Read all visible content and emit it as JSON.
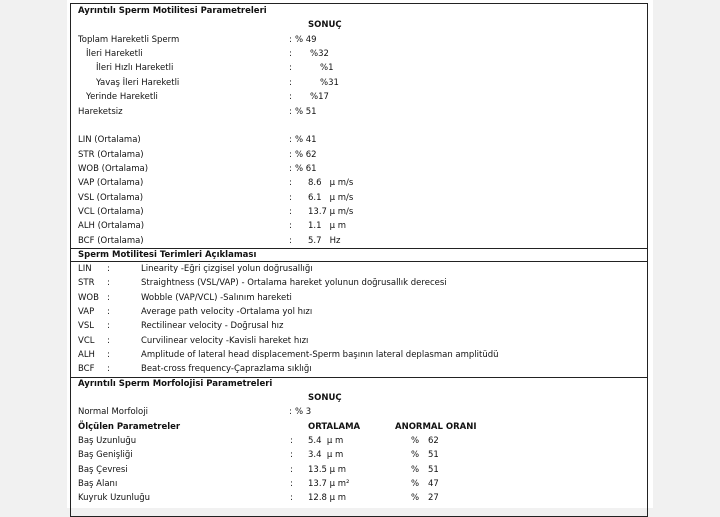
{
  "motility": {
    "title": "Ayrıntılı Sperm Motilitesi Parametreleri",
    "header": "SONUÇ",
    "rows": [
      [
        "Toplam Hareketli Sperm",
        ":",
        "% 49"
      ],
      [
        "İleri Hareketli",
        ":",
        "%32"
      ],
      [
        "İleri Hızlı Hareketli",
        ":",
        "%1"
      ],
      [
        "Yavaş İleri Hareketli",
        ":",
        "%31"
      ],
      [
        "Yerinde Hareketli",
        ":",
        "%17"
      ],
      [
        "Hareketsiz",
        ":",
        "% 51"
      ],
      [
        "LIN (Ortalama)",
        ":",
        "% 41"
      ],
      [
        "STR (Ortalama)",
        ":",
        "% 62"
      ],
      [
        "WOB (Ortalama)",
        ":",
        "% 61"
      ],
      [
        "VAP (Ortalama)",
        ":",
        "8.6   µ m/s"
      ],
      [
        "VSL (Ortalama)",
        ":",
        "6.1   µ m/s"
      ],
      [
        "VCL (Ortalama)",
        ":",
        "13.7 µ m/s"
      ],
      [
        "ALH (Ortalama)",
        ":",
        "1.1   µ m"
      ],
      [
        "BCF (Ortalama)",
        ":",
        "5.7   Hz"
      ]
    ]
  },
  "terms": {
    "title": "Sperm Motilitesi Terimleri Açıklaması",
    "rows": [
      [
        "LIN",
        ":",
        "Linearity -Eğri çizgisel yolun doğrusallığı"
      ],
      [
        "STR",
        ":",
        "Straightness (VSL/VAP) - Ortalama hareket yolunun doğrusallık derecesi"
      ],
      [
        "WOB",
        ":",
        "Wobble (VAP/VCL) -Salınım hareketi"
      ],
      [
        "VAP",
        ":",
        "Average path velocity -Ortalama yol hızı"
      ],
      [
        "VSL",
        ":",
        "Rectilinear velocity - Doğrusal hız"
      ],
      [
        "VCL",
        ":",
        "Curvilinear velocity -Kavisli hareket hızı"
      ],
      [
        "ALH",
        ":",
        "Amplitude of lateral head displacement-Sperm başının lateral deplasman amplitüdü"
      ],
      [
        "BCF",
        ":",
        "Beat-cross frequency-Çaprazlama sıklığı"
      ]
    ]
  },
  "morphology": {
    "title": "Ayrıntılı Sperm Morfolojisi Parametreleri",
    "header": "SONUÇ",
    "normal": [
      "Normal Morfoloji",
      ":",
      "% 3"
    ],
    "columns": [
      "Ölçülen Parametreler",
      "ORTALAMA",
      "ANORMAL ORANI"
    ],
    "rows": [
      [
        "Baş Uzunluğu",
        ":",
        "5.4  µ m",
        "%",
        "62"
      ],
      [
        "Baş Genişliği",
        ":",
        "3.4  µ m",
        "%",
        "51"
      ],
      [
        "Baş Çevresi",
        ":",
        "13.5 µ m",
        "%",
        "51"
      ],
      [
        "Baş Alanı",
        ":",
        "13.7 µ m²",
        "%",
        "47"
      ],
      [
        "Kuyruk Uzunluğu",
        ":",
        "12.8 µ m",
        "%",
        "27"
      ]
    ]
  }
}
